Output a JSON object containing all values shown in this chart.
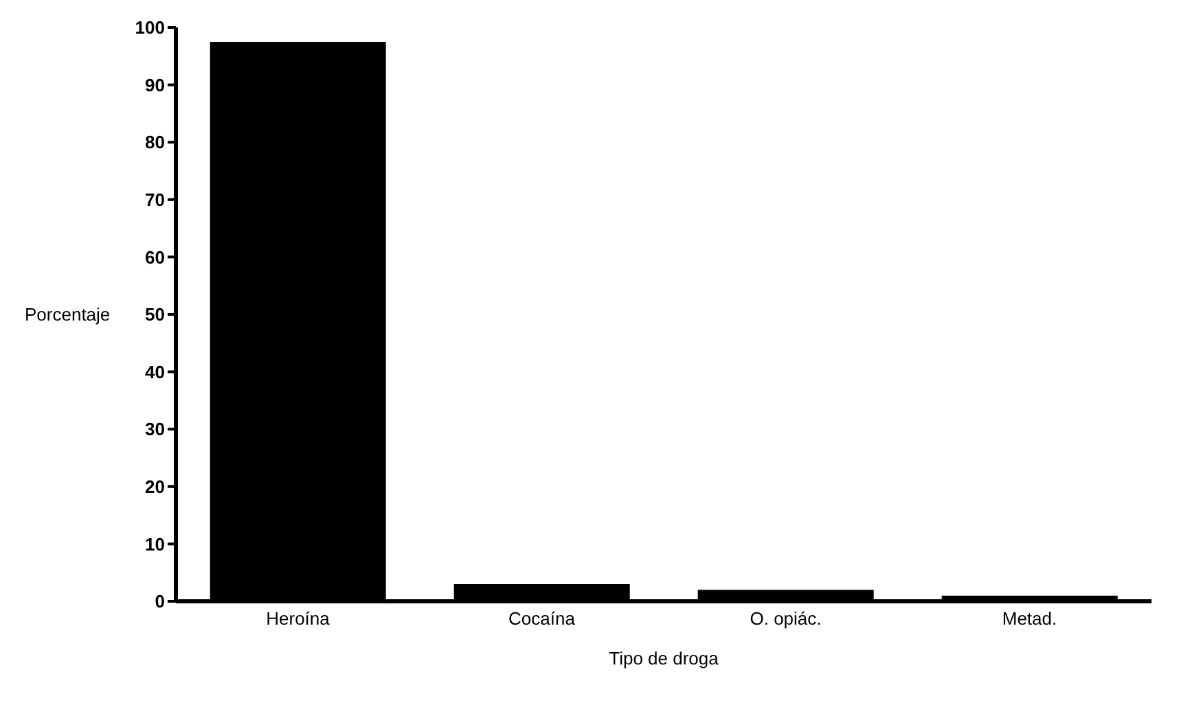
{
  "chart_data": {
    "type": "bar",
    "xlabel": "Tipo de droga",
    "ylabel": "Porcentaje",
    "categories": [
      "Heroína",
      "Cocaína",
      "O. opiác.",
      "Metad."
    ],
    "values": [
      97.5,
      3,
      2,
      1
    ],
    "color": "#000000",
    "ylim": [
      0,
      100
    ],
    "yticks": [
      0,
      10,
      20,
      30,
      40,
      50,
      60,
      70,
      80,
      90,
      100
    ],
    "grid": false
  }
}
